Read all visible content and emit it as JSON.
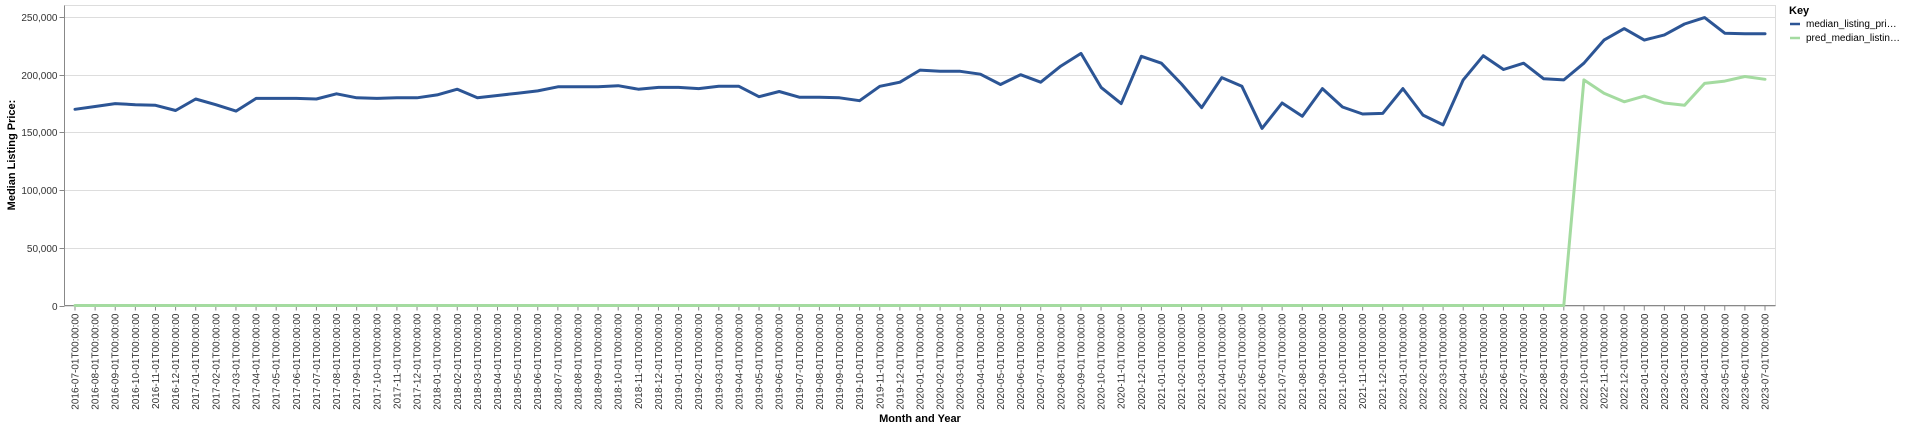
{
  "chart_data": {
    "type": "line",
    "xlabel": "Month and Year",
    "ylabel": "Median Listing Price:",
    "ylim": [
      0,
      260000
    ],
    "yticks": [
      0,
      50000,
      100000,
      150000,
      200000,
      250000
    ],
    "ytick_labels": [
      "0",
      "50,000",
      "100,000",
      "150,000",
      "200,000",
      "250,000"
    ],
    "grid": true,
    "legend": {
      "title": "Key",
      "placement": "top-right"
    },
    "x": [
      "2016-07-01T00:00:00",
      "2016-08-01T00:00:00",
      "2016-09-01T00:00:00",
      "2016-10-01T00:00:00",
      "2016-11-01T00:00:00",
      "2016-12-01T00:00:00",
      "2017-01-01T00:00:00",
      "2017-02-01T00:00:00",
      "2017-03-01T00:00:00",
      "2017-04-01T00:00:00",
      "2017-05-01T00:00:00",
      "2017-06-01T00:00:00",
      "2017-07-01T00:00:00",
      "2017-08-01T00:00:00",
      "2017-09-01T00:00:00",
      "2017-10-01T00:00:00",
      "2017-11-01T00:00:00",
      "2017-12-01T00:00:00",
      "2018-01-01T00:00:00",
      "2018-02-01T00:00:00",
      "2018-03-01T00:00:00",
      "2018-04-01T00:00:00",
      "2018-05-01T00:00:00",
      "2018-06-01T00:00:00",
      "2018-07-01T00:00:00",
      "2018-08-01T00:00:00",
      "2018-09-01T00:00:00",
      "2018-10-01T00:00:00",
      "2018-11-01T00:00:00",
      "2018-12-01T00:00:00",
      "2019-01-01T00:00:00",
      "2019-02-01T00:00:00",
      "2019-03-01T00:00:00",
      "2019-04-01T00:00:00",
      "2019-05-01T00:00:00",
      "2019-06-01T00:00:00",
      "2019-07-01T00:00:00",
      "2019-08-01T00:00:00",
      "2019-09-01T00:00:00",
      "2019-10-01T00:00:00",
      "2019-11-01T00:00:00",
      "2019-12-01T00:00:00",
      "2020-01-01T00:00:00",
      "2020-02-01T00:00:00",
      "2020-03-01T00:00:00",
      "2020-04-01T00:00:00",
      "2020-05-01T00:00:00",
      "2020-06-01T00:00:00",
      "2020-07-01T00:00:00",
      "2020-08-01T00:00:00",
      "2020-09-01T00:00:00",
      "2020-10-01T00:00:00",
      "2020-11-01T00:00:00",
      "2020-12-01T00:00:00",
      "2021-01-01T00:00:00",
      "2021-02-01T00:00:00",
      "2021-03-01T00:00:00",
      "2021-04-01T00:00:00",
      "2021-05-01T00:00:00",
      "2021-06-01T00:00:00",
      "2021-07-01T00:00:00",
      "2021-08-01T00:00:00",
      "2021-09-01T00:00:00",
      "2021-10-01T00:00:00",
      "2021-11-01T00:00:00",
      "2021-12-01T00:00:00",
      "2022-01-01T00:00:00",
      "2022-02-01T00:00:00",
      "2022-03-01T00:00:00",
      "2022-04-01T00:00:00",
      "2022-05-01T00:00:00",
      "2022-06-01T00:00:00",
      "2022-07-01T00:00:00",
      "2022-08-01T00:00:00",
      "2022-09-01T00:00:00",
      "2022-10-01T00:00:00",
      "2022-11-01T00:00:00",
      "2022-12-01T00:00:00",
      "2023-01-01T00:00:00",
      "2023-02-01T00:00:00",
      "2023-03-01T00:00:00",
      "2023-04-01T00:00:00",
      "2023-05-01T00:00:00",
      "2023-06-01T00:00:00",
      "2023-07-01T00:00:00"
    ],
    "series": [
      {
        "name": "median_listing_pri…",
        "color": "#2c5595",
        "values": [
          170000,
          172500,
          175000,
          174000,
          173500,
          169000,
          179000,
          174000,
          168500,
          179500,
          179500,
          179500,
          179000,
          183500,
          180000,
          179500,
          180000,
          180000,
          182500,
          187500,
          180000,
          182000,
          184000,
          186000,
          189500,
          189500,
          189500,
          190500,
          187500,
          189000,
          189000,
          188000,
          190000,
          190000,
          181000,
          185500,
          180500,
          180500,
          180000,
          177500,
          190000,
          193500,
          204000,
          203000,
          203000,
          200500,
          191500,
          200000,
          193500,
          207500,
          218500,
          189000,
          175000,
          216000,
          210000,
          192000,
          171500,
          197500,
          190000,
          153500,
          175500,
          164000,
          188000,
          172000,
          166000,
          166500,
          188000,
          165000,
          156500,
          195500,
          216500,
          204500,
          210000,
          196500,
          195500,
          210000,
          230000,
          240000,
          230000,
          234500,
          244000,
          249500,
          236000,
          235500,
          235500
        ]
      },
      {
        "name": "pred_median_listin…",
        "color": "#a4dba0",
        "values": [
          0,
          0,
          0,
          0,
          0,
          0,
          0,
          0,
          0,
          0,
          0,
          0,
          0,
          0,
          0,
          0,
          0,
          0,
          0,
          0,
          0,
          0,
          0,
          0,
          0,
          0,
          0,
          0,
          0,
          0,
          0,
          0,
          0,
          0,
          0,
          0,
          0,
          0,
          0,
          0,
          0,
          0,
          0,
          0,
          0,
          0,
          0,
          0,
          0,
          0,
          0,
          0,
          0,
          0,
          0,
          0,
          0,
          0,
          0,
          0,
          0,
          0,
          0,
          0,
          0,
          0,
          0,
          0,
          0,
          0,
          0,
          0,
          0,
          0,
          0,
          195500,
          184000,
          176500,
          181500,
          175500,
          173500,
          192500,
          194500,
          198500,
          196000
        ]
      }
    ]
  }
}
